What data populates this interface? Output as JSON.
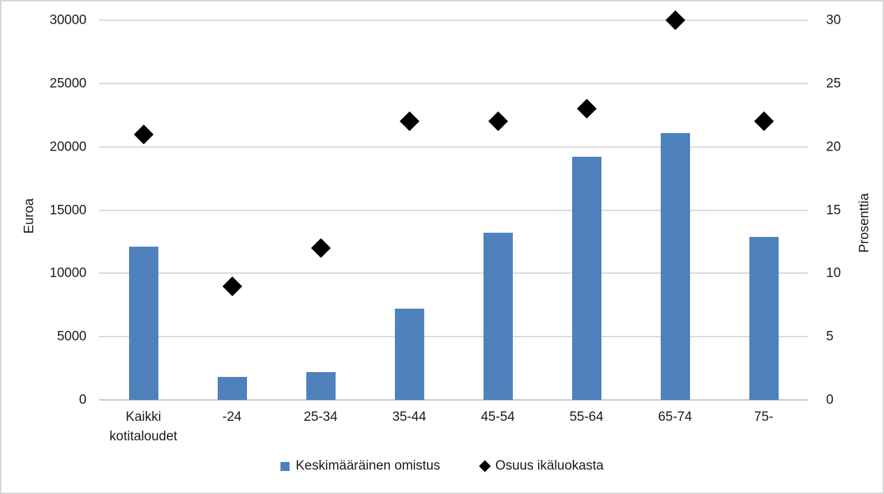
{
  "chart_data": {
    "type": "bar",
    "subtype": "bar-and-scatter-combo",
    "categories": [
      "Kaikki kotitaloudet",
      "-24",
      "25-34",
      "35-44",
      "45-54",
      "55-64",
      "65-74",
      "75-"
    ],
    "series": [
      {
        "name": "Keskimääräinen omistus",
        "type": "bar",
        "axis": "left",
        "color": "#4f81bd",
        "values": [
          12100,
          1800,
          2200,
          7200,
          13200,
          19200,
          21100,
          12900
        ]
      },
      {
        "name": "Osuus ikäluokasta",
        "type": "scatter",
        "marker": "diamond",
        "axis": "right",
        "color": "#000000",
        "values": [
          21,
          9,
          12,
          22,
          22,
          23,
          30,
          22
        ]
      }
    ],
    "left_axis": {
      "title": "Euroa",
      "min": 0,
      "max": 30000,
      "step": 5000,
      "ticks": [
        "0",
        "5000",
        "10000",
        "15000",
        "20000",
        "25000",
        "30000"
      ]
    },
    "right_axis": {
      "title": "Prosenttia",
      "min": 0,
      "max": 30,
      "step": 5,
      "ticks": [
        "0",
        "5",
        "10",
        "15",
        "20",
        "25",
        "30"
      ]
    },
    "grid": "horizontal",
    "legend_position": "bottom",
    "title": ""
  },
  "colors": {
    "bar": "#4f81bd",
    "marker": "#000000",
    "gridline": "#d9d9d9",
    "border": "#d6d6d6",
    "text": "#1a1a1a",
    "background": "#ffffff"
  }
}
